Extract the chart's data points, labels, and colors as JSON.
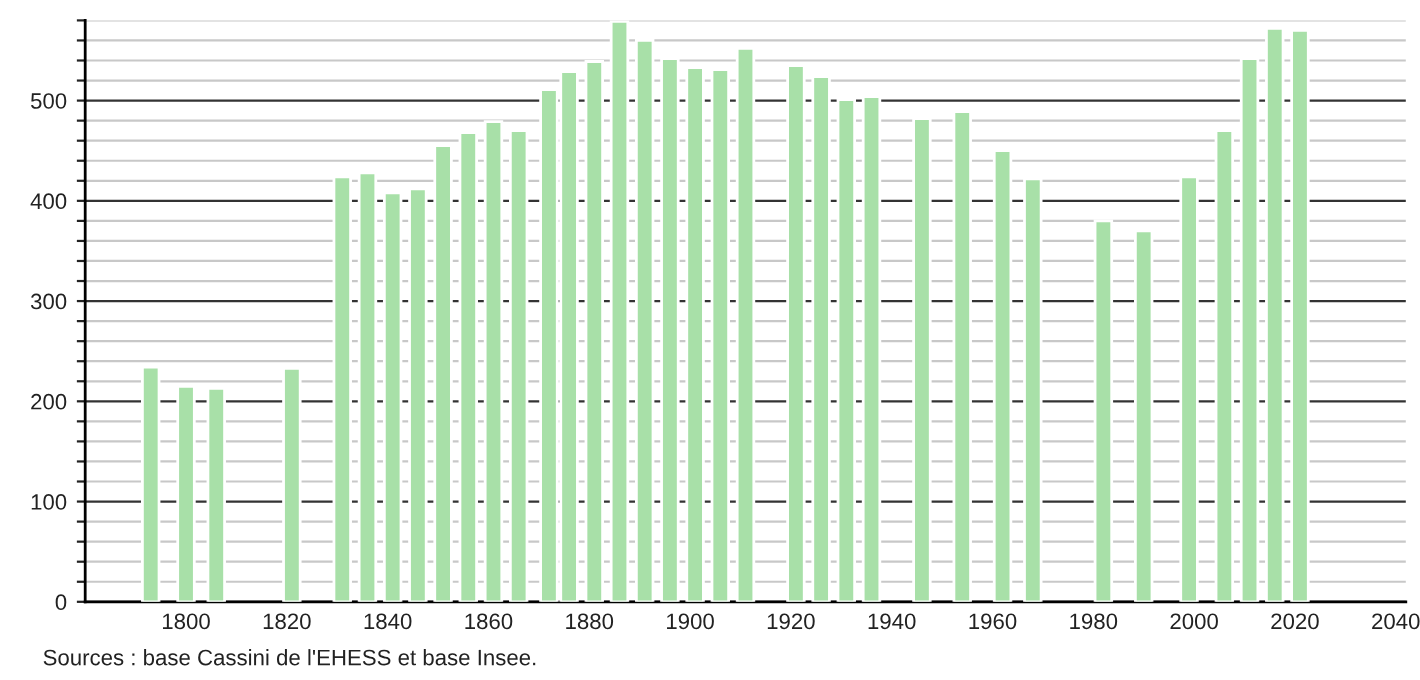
{
  "chart_data": {
    "type": "bar",
    "x": [
      1793,
      1800,
      1806,
      1821,
      1831,
      1836,
      1841,
      1846,
      1851,
      1856,
      1861,
      1866,
      1872,
      1876,
      1881,
      1886,
      1891,
      1896,
      1901,
      1906,
      1911,
      1921,
      1926,
      1931,
      1936,
      1946,
      1954,
      1962,
      1968,
      1982,
      1990,
      1999,
      2006,
      2011,
      2016,
      2021
    ],
    "values": [
      234,
      215,
      213,
      233,
      424,
      428,
      408,
      412,
      455,
      468,
      479,
      470,
      511,
      529,
      539,
      579,
      560,
      542,
      533,
      531,
      552,
      535,
      524,
      501,
      504,
      482,
      489,
      450,
      422,
      380,
      370,
      424,
      470,
      542,
      572,
      570
    ],
    "color": "#a8e0a8",
    "xlim": [
      1780,
      2042
    ],
    "xticks": [
      1800,
      1820,
      1840,
      1860,
      1880,
      1900,
      1920,
      1940,
      1960,
      1980,
      2000,
      2020,
      2040
    ],
    "ylim": [
      0,
      580
    ],
    "yticks": [
      0,
      {
        "value": 20,
        "label": null
      },
      {
        "value": 40,
        "label": null
      },
      {
        "value": 60,
        "label": null
      },
      {
        "value": 80,
        "label": null
      },
      100,
      {
        "value": 120,
        "label": null
      },
      {
        "value": 140,
        "label": null
      },
      {
        "value": 160,
        "label": null
      },
      {
        "value": 180,
        "label": null
      },
      200,
      {
        "value": 220,
        "label": null
      },
      {
        "value": 240,
        "label": null
      },
      {
        "value": 260,
        "label": null
      },
      {
        "value": 280,
        "label": null
      },
      300,
      {
        "value": 320,
        "label": null
      },
      {
        "value": 340,
        "label": null
      },
      {
        "value": 360,
        "label": null
      },
      {
        "value": 380,
        "label": null
      },
      400,
      {
        "value": 420,
        "label": null
      },
      {
        "value": 440,
        "label": null
      },
      {
        "value": 460,
        "label": null
      },
      {
        "value": 480,
        "label": null
      },
      500,
      {
        "value": 520,
        "label": null
      },
      {
        "value": 540,
        "label": null
      },
      {
        "value": 560,
        "label": null
      },
      {
        "value": 580,
        "label": null
      }
    ],
    "grid": "y",
    "annotations": [
      "Sources : base Cassini de l'EHESS et base Insee."
    ]
  }
}
